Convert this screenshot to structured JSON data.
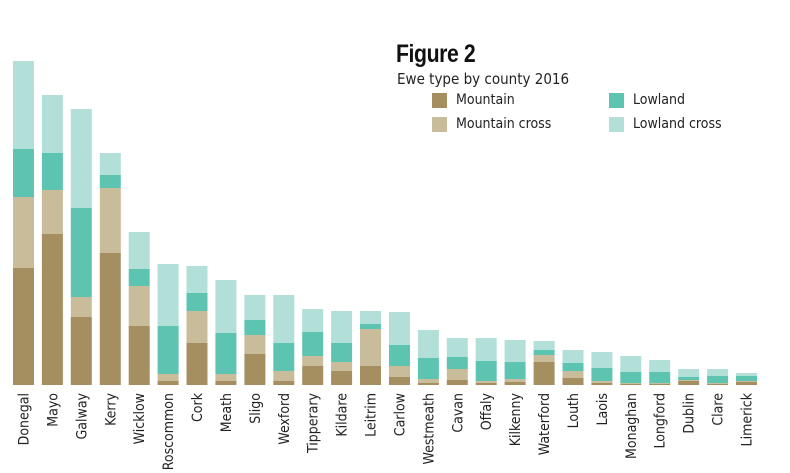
{
  "chart_data": {
    "type": "bar",
    "stacked": true,
    "title": "Figure 2",
    "subtitle": "Ewe type by county 2016",
    "xlabel": "",
    "ylabel": "",
    "ylim": [
      0,
      330
    ],
    "grid": false,
    "legend_position": "top-right",
    "categories": [
      "Donegal",
      "Mayo",
      "Galway",
      "Kerry",
      "Wicklow",
      "Roscommon",
      "Cork",
      "Meath",
      "Sligo",
      "Wexford",
      "Tipperary",
      "Kildare",
      "Leitrim",
      "Carlow",
      "Westmeath",
      "Cavan",
      "Offaly",
      "Kilkenny",
      "Waterford",
      "Louth",
      "Laois",
      "Monaghan",
      "Longford",
      "Dublin",
      "Clare",
      "Limerick"
    ],
    "series": [
      {
        "name": "Mountain",
        "color": "#a58f60",
        "values": [
          117,
          151,
          68,
          132,
          59,
          4,
          42,
          4,
          31,
          4,
          19,
          14,
          19,
          8,
          2,
          5,
          2,
          3,
          23,
          7,
          2,
          1,
          1,
          4,
          1,
          3
        ]
      },
      {
        "name": "Mountain cross",
        "color": "#c9bc9b",
        "values": [
          71,
          44,
          20,
          65,
          40,
          7,
          32,
          7,
          19,
          10,
          10,
          9,
          37,
          11,
          4,
          11,
          2,
          3,
          7,
          7,
          2,
          1,
          1,
          1,
          1,
          1
        ]
      },
      {
        "name": "Lowland",
        "color": "#5ec4b2",
        "values": [
          48,
          37,
          89,
          13,
          17,
          48,
          18,
          41,
          15,
          28,
          24,
          19,
          5,
          21,
          21,
          12,
          20,
          17,
          5,
          8,
          13,
          11,
          11,
          3,
          7,
          5
        ]
      },
      {
        "name": "Lowland cross",
        "color": "#b2e0d8",
        "values": [
          88,
          58,
          99,
          22,
          37,
          62,
          27,
          53,
          25,
          48,
          23,
          32,
          13,
          33,
          28,
          19,
          23,
          22,
          9,
          13,
          16,
          16,
          12,
          8,
          7,
          3
        ]
      }
    ]
  }
}
